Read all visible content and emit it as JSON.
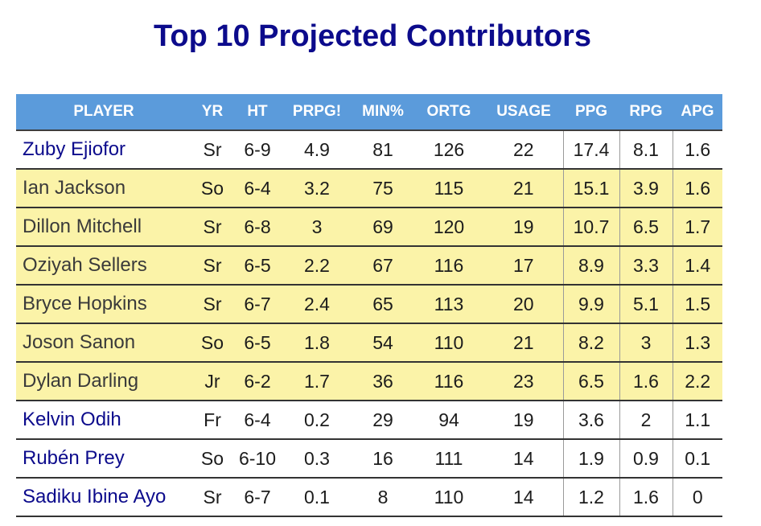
{
  "title": "Top 10 Projected Contributors",
  "colors": {
    "title": "#0c0b8c",
    "header_bg": "#5b9bdb",
    "header_text": "#ffffff",
    "highlight_row": "#fbf3a8",
    "player_link": "#0c0b8c"
  },
  "table": {
    "headers": [
      "PLAYER",
      "YR",
      "HT",
      "PRPG!",
      "MIN%",
      "ORTG",
      "USAGE",
      "PPG",
      "RPG",
      "APG"
    ],
    "rows": [
      {
        "player": "Zuby Ejiofor",
        "yr": "Sr",
        "ht": "6-9",
        "prpg": "4.9",
        "min": "81",
        "ortg": "126",
        "usage": "22",
        "ppg": "17.4",
        "rpg": "8.1",
        "apg": "1.6",
        "highlighted": false
      },
      {
        "player": "Ian Jackson",
        "yr": "So",
        "ht": "6-4",
        "prpg": "3.2",
        "min": "75",
        "ortg": "115",
        "usage": "21",
        "ppg": "15.1",
        "rpg": "3.9",
        "apg": "1.6",
        "highlighted": true
      },
      {
        "player": "Dillon Mitchell",
        "yr": "Sr",
        "ht": "6-8",
        "prpg": "3",
        "min": "69",
        "ortg": "120",
        "usage": "19",
        "ppg": "10.7",
        "rpg": "6.5",
        "apg": "1.7",
        "highlighted": true
      },
      {
        "player": "Oziyah Sellers",
        "yr": "Sr",
        "ht": "6-5",
        "prpg": "2.2",
        "min": "67",
        "ortg": "116",
        "usage": "17",
        "ppg": "8.9",
        "rpg": "3.3",
        "apg": "1.4",
        "highlighted": true
      },
      {
        "player": "Bryce Hopkins",
        "yr": "Sr",
        "ht": "6-7",
        "prpg": "2.4",
        "min": "65",
        "ortg": "113",
        "usage": "20",
        "ppg": "9.9",
        "rpg": "5.1",
        "apg": "1.5",
        "highlighted": true
      },
      {
        "player": "Joson Sanon",
        "yr": "So",
        "ht": "6-5",
        "prpg": "1.8",
        "min": "54",
        "ortg": "110",
        "usage": "21",
        "ppg": "8.2",
        "rpg": "3",
        "apg": "1.3",
        "highlighted": true
      },
      {
        "player": "Dylan Darling",
        "yr": "Jr",
        "ht": "6-2",
        "prpg": "1.7",
        "min": "36",
        "ortg": "116",
        "usage": "23",
        "ppg": "6.5",
        "rpg": "1.6",
        "apg": "2.2",
        "highlighted": true
      },
      {
        "player": "Kelvin Odih",
        "yr": "Fr",
        "ht": "6-4",
        "prpg": "0.2",
        "min": "29",
        "ortg": "94",
        "usage": "19",
        "ppg": "3.6",
        "rpg": "2",
        "apg": "1.1",
        "highlighted": false
      },
      {
        "player": "Rubén Prey",
        "yr": "So",
        "ht": "6-10",
        "prpg": "0.3",
        "min": "16",
        "ortg": "111",
        "usage": "14",
        "ppg": "1.9",
        "rpg": "0.9",
        "apg": "0.1",
        "highlighted": false
      },
      {
        "player": "Sadiku Ibine Ayo",
        "yr": "Sr",
        "ht": "6-7",
        "prpg": "0.1",
        "min": "8",
        "ortg": "110",
        "usage": "14",
        "ppg": "1.2",
        "rpg": "1.6",
        "apg": "0",
        "highlighted": false
      }
    ]
  }
}
